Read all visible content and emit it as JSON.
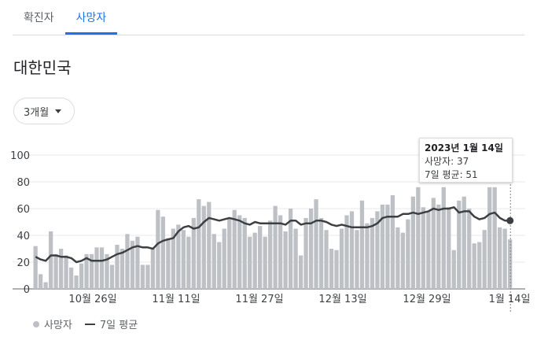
{
  "tabs": [
    {
      "label": "확진자",
      "active": false
    },
    {
      "label": "사망자",
      "active": true
    }
  ],
  "region": "대한민국",
  "period_select": {
    "value": "3개월"
  },
  "tooltip": {
    "date": "2023년 1월 14일",
    "deaths_line": "사망자: 37",
    "avg_line": "7일 평균: 51"
  },
  "legend": {
    "deaths": "사망자",
    "avg": "7일 평균"
  },
  "colors": {
    "bar": "#bdc1c6",
    "line": "#3c4043",
    "accent": "#1a73e8",
    "grid": "#e8eaed"
  },
  "chart_data": {
    "type": "bar",
    "ylim": [
      0,
      100
    ],
    "yticks": [
      0,
      20,
      40,
      60,
      80,
      100
    ],
    "xtick_labels": [
      "10월 26일",
      "11월 11일",
      "11월 27일",
      "12월 13일",
      "12월 29일",
      "1월 14일"
    ],
    "series": [
      {
        "name": "사망자",
        "type": "bar",
        "values": [
          32,
          11,
          5,
          43,
          26,
          30,
          25,
          16,
          10,
          19,
          26,
          26,
          31,
          31,
          26,
          18,
          33,
          30,
          41,
          36,
          39,
          18,
          18,
          30,
          59,
          54,
          38,
          45,
          48,
          44,
          39,
          53,
          67,
          62,
          65,
          41,
          35,
          45,
          53,
          59,
          55,
          53,
          39,
          42,
          47,
          39,
          51,
          62,
          55,
          43,
          60,
          45,
          25,
          53,
          60,
          67,
          53,
          44,
          30,
          29,
          45,
          55,
          58,
          44,
          66,
          49,
          53,
          58,
          63,
          63,
          70,
          46,
          42,
          52,
          69,
          76,
          61,
          58,
          68,
          63,
          76,
          61,
          29,
          66,
          69,
          60,
          34,
          35,
          44,
          76,
          76,
          46,
          45,
          37
        ],
        "color": "#bdc1c6"
      },
      {
        "name": "7일 평균",
        "type": "line",
        "values": [
          24,
          22,
          21,
          25,
          25,
          24,
          24,
          23,
          20,
          21,
          23,
          21,
          21,
          21,
          22,
          24,
          26,
          27,
          29,
          31,
          32,
          31,
          31,
          30,
          34,
          36,
          37,
          38,
          43,
          46,
          47,
          45,
          46,
          50,
          53,
          52,
          51,
          52,
          53,
          52,
          51,
          49,
          48,
          50,
          49,
          49,
          49,
          49,
          49,
          48,
          51,
          51,
          48,
          49,
          49,
          51,
          51,
          50,
          48,
          47,
          48,
          47,
          46,
          46,
          46,
          46,
          47,
          49,
          53,
          54,
          54,
          54,
          56,
          56,
          57,
          56,
          57,
          58,
          60,
          59,
          60,
          60,
          61,
          57,
          58,
          58,
          54,
          52,
          53,
          56,
          57,
          53,
          51,
          51
        ],
        "color": "#3c4043"
      }
    ]
  }
}
